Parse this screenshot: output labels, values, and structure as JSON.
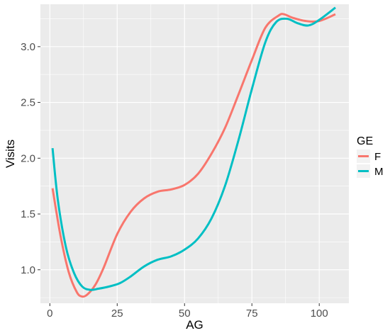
{
  "chart_data": {
    "type": "line",
    "xlabel": "AG",
    "ylabel": "Visits",
    "xlim": [
      -3.5,
      111
    ],
    "ylim": [
      0.7,
      3.38
    ],
    "x_ticks": [
      0,
      25,
      50,
      75,
      100
    ],
    "y_ticks": [
      1.0,
      1.5,
      2.0,
      2.5,
      3.0
    ],
    "x_tick_labels": [
      "0",
      "25",
      "50",
      "75",
      "100"
    ],
    "y_tick_labels": [
      "1.0",
      "1.5",
      "2.0",
      "2.5",
      "3.0"
    ],
    "grid": true,
    "legend": {
      "title": "GE",
      "position": "right"
    },
    "series": [
      {
        "name": "F",
        "color": "#F8766D",
        "x": [
          1,
          4,
          7,
          10,
          12,
          14,
          17,
          20,
          25,
          30,
          35,
          40,
          45,
          50,
          55,
          60,
          65,
          70,
          75,
          80,
          85,
          87,
          90,
          95,
          100,
          106
        ],
        "y": [
          1.73,
          1.3,
          0.98,
          0.8,
          0.76,
          0.78,
          0.87,
          1.02,
          1.32,
          1.52,
          1.64,
          1.7,
          1.72,
          1.76,
          1.86,
          2.04,
          2.27,
          2.57,
          2.88,
          3.17,
          3.28,
          3.29,
          3.26,
          3.23,
          3.23,
          3.29
        ]
      },
      {
        "name": "M",
        "color": "#00BFC4",
        "x": [
          1,
          3,
          6,
          9,
          12,
          15,
          18,
          22,
          26,
          30,
          35,
          40,
          45,
          50,
          55,
          60,
          65,
          70,
          75,
          80,
          84,
          88,
          92,
          96,
          100,
          106
        ],
        "y": [
          2.09,
          1.62,
          1.2,
          0.97,
          0.85,
          0.82,
          0.83,
          0.85,
          0.88,
          0.94,
          1.03,
          1.09,
          1.12,
          1.18,
          1.28,
          1.46,
          1.75,
          2.16,
          2.62,
          3.04,
          3.22,
          3.25,
          3.21,
          3.19,
          3.24,
          3.35
        ]
      }
    ]
  }
}
